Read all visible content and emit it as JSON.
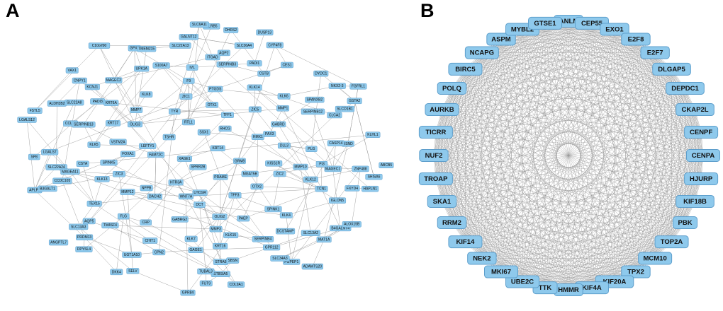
{
  "figure": {
    "panelA": {
      "label": "A",
      "nodes": [
        "ABCB5",
        "ANGPTL7",
        "LILRB5",
        "ADAMTS20",
        "LGALS12",
        "FGFRL1",
        "GPR84",
        "C10orf90",
        "HAPLN1",
        "APLP1",
        "DUSP13",
        "COL9A1",
        "FSTL5",
        "KLHL1",
        "DKK4",
        "SLC6A11",
        "B4GALNT4",
        "SP8",
        "NKX2-3",
        "FUT9",
        "VAX1",
        "SHISA6",
        "DPYSL4",
        "DHRS2",
        "PGPEP1",
        "ALDH3B2",
        "GSTA2",
        "SELV",
        "GPX2",
        "ALOX15B",
        "B3GALT1",
        "CYP4F8",
        "ST8SIA5",
        "CNPY1",
        "ZNF488",
        "PRDM13",
        "GALNT12",
        "MAT1A",
        "LGALS7",
        "DYDC1",
        "TUBAL3",
        "TMEM215",
        "FXYD4",
        "SLC13A3",
        "SLC36A4",
        "SLC34A3",
        "SLC22A8",
        "SLCO1B1",
        "UGT1A10",
        "SLC22A13",
        "SLC13A2",
        "SLC22A24",
        "CES1",
        "STRA6",
        "KCNJ1",
        "BSND",
        "AQP5",
        "AQP2",
        "GPR112",
        "CCL24",
        "CLCA2",
        "CPN2",
        "UPK1A",
        "IGLON5",
        "CCDC105",
        "PADI1",
        "SBSN",
        "PADI3",
        "CASP14",
        "TM4SF4",
        "ITGAD",
        "DCSTAMP",
        "MAGEA11",
        "SPANXB2",
        "GAGE1",
        "MAGEC2",
        "MAGEC1",
        "TEX15",
        "SERPINB3",
        "SERPINB4",
        "SERPINB13",
        "SERPINB12",
        "CHIT1",
        "S100A7",
        "TCN1",
        "CSTA",
        "CSTB",
        "KRT16",
        "KRT6A",
        "PI3",
        "FLG",
        "IVL",
        "KLK4",
        "KLK5",
        "KLK6",
        "KLK7",
        "KLK8",
        "KLK12",
        "KLK13",
        "KLK14",
        "KLK15",
        "KRT17",
        "PLG",
        "CRP",
        "F9",
        "SPINK1",
        "SPINK5",
        "MMP1",
        "MMP3",
        "MMP7",
        "MMP10",
        "MMP12",
        "PTGDS",
        "PAEP",
        "VSTM2A",
        "GABRD",
        "GABRG2",
        "ZIC1",
        "ZIC2",
        "ZIC3",
        "ZIC5",
        "OLIG2",
        "OLIG3",
        "DLL3",
        "DACH2",
        "OTX1",
        "OTX2",
        "FOXA1",
        "PAX3",
        "DCT",
        "TYR",
        "KISS1R",
        "NPPB",
        "TFF1",
        "TFF3",
        "LEFTY1",
        "HMX1",
        "WNT7A",
        "RTL1",
        "MGAT5B",
        "FAM72C",
        "RHCG",
        "LHCGR",
        "TSHR",
        "GRM8",
        "HTR3A",
        "SSX1",
        "PRAME",
        "XAGE1",
        "KRT14",
        "SPRR2B"
      ]
    },
    "panelB": {
      "label": "B",
      "nodes": [
        "ANLN",
        "CEP55",
        "EXO1",
        "E2F8",
        "E2F7",
        "DLGAP5",
        "DEPDC1",
        "CKAP2L",
        "CENPF",
        "CENPA",
        "HJURP",
        "KIF18B",
        "PBK",
        "TOP2A",
        "MCM10",
        "TPX2",
        "KIF20A",
        "KIF4A",
        "HMMR",
        "TTK",
        "UBE2C",
        "MKI67",
        "NEK2",
        "KIF14",
        "RRM2",
        "SKA1",
        "TROAP",
        "NUF2",
        "TICRR",
        "AURKB",
        "POLQ",
        "BIRC5",
        "NCAPG",
        "ASPM",
        "MYBL2",
        "GTSE1"
      ]
    }
  },
  "colors": {
    "node_fill": "#8EC9EC",
    "node_border": "#5E9FCC",
    "edge": "#9A9A9A",
    "background": "#FFFFFF",
    "label": "#000000"
  }
}
